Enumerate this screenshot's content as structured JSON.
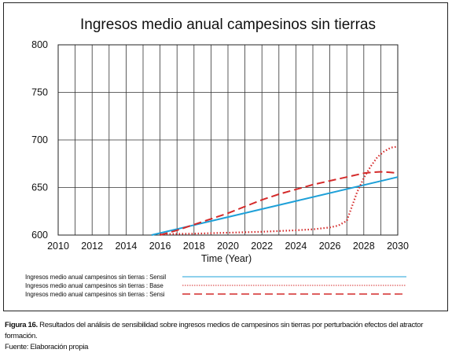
{
  "chart_data": {
    "type": "line",
    "title": "Ingresos medio anual campesinos sin tierras",
    "xlabel": "Time (Year)",
    "ylabel": "",
    "xlim": [
      2010,
      2030
    ],
    "ylim": [
      600,
      800
    ],
    "x_ticks": [
      "2010",
      "2012",
      "2014",
      "2016",
      "2018",
      "2020",
      "2022",
      "2024",
      "2026",
      "2028",
      "2030"
    ],
    "y_ticks": [
      "600",
      "650",
      "700",
      "750",
      "800"
    ],
    "grid": "vertical-yearly-and-horizontal-major",
    "legend_position": "bottom",
    "series": [
      {
        "name": "Ingresos medio anual campesinos sin tierras : Sensil",
        "color": "#1ea0d8",
        "style": "solid",
        "x": [
          2015.5,
          2030
        ],
        "y": [
          600,
          661
        ]
      },
      {
        "name": "Ingresos medio anual campesinos sin tierras : Base",
        "color": "#d42a2a",
        "style": "dotted",
        "x": [
          2016,
          2018,
          2020,
          2022,
          2024,
          2025,
          2026,
          2026.5,
          2027,
          2027.3,
          2027.6,
          2028,
          2028.4,
          2028.8,
          2029.2,
          2029.6,
          2030
        ],
        "y": [
          601,
          601.5,
          602.5,
          603.5,
          605,
          606,
          608,
          610,
          615,
          630,
          645,
          660,
          672,
          682,
          688,
          692,
          693
        ]
      },
      {
        "name": "Ingresos medio anual campesinos sin tierras : Sensi",
        "color": "#d42a2a",
        "style": "dashed",
        "x": [
          2016,
          2017,
          2018,
          2019,
          2020,
          2021,
          2022,
          2023,
          2024,
          2025,
          2026,
          2027,
          2028,
          2028.5,
          2029,
          2029.5,
          2030
        ],
        "y": [
          600,
          605,
          611,
          617,
          623,
          630,
          637,
          643,
          648,
          653,
          657,
          661,
          665,
          666,
          666.5,
          666,
          665
        ]
      }
    ]
  },
  "caption": {
    "label": "Figura 16.",
    "text": " Resultados del análisis de sensibilidad sobre ingresos medios de campesinos sin tierras por perturbación efectos del atractor formación.",
    "source": "Fuente: Elaboración propia"
  }
}
